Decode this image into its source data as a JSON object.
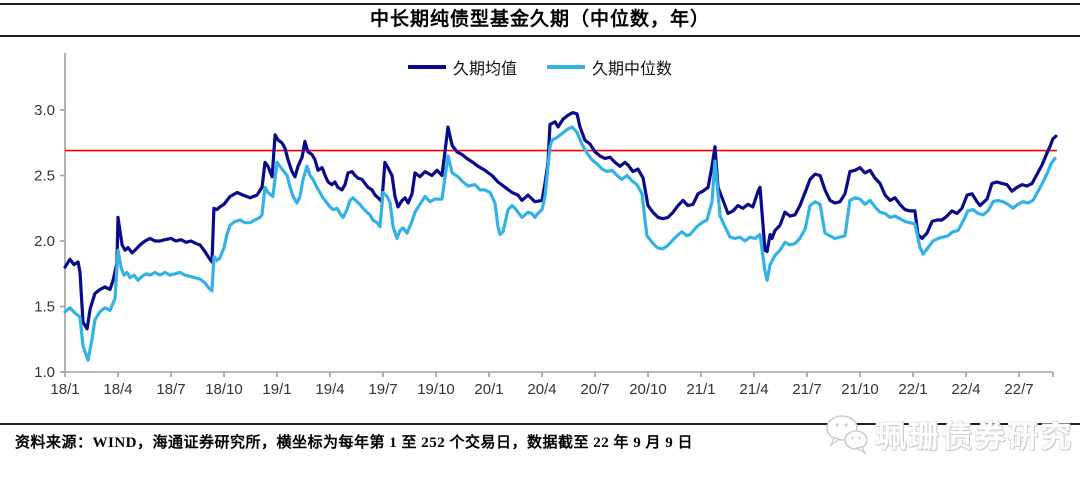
{
  "title": "中长期纯债型基金久期（中位数，年）",
  "legend": [
    {
      "label": "久期均值",
      "color": "#0A0A8C"
    },
    {
      "label": "久期中位数",
      "color": "#33B3E5"
    }
  ],
  "footer": {
    "source_note": "资料来源：WIND，海通证券研究所，横坐标为每年第 1 至 252 个交易日，数据截至 22 年 9 月 9 日"
  },
  "watermark": {
    "text": "珮珊债券研究",
    "icon": "wechat-icon"
  },
  "colors": {
    "axis": "#A0A0A0",
    "tick_label": "#333333",
    "reference": "#FF0000"
  },
  "chart_data": {
    "type": "line",
    "title": "中长期纯债型基金久期（中位数，年）",
    "grid": false,
    "legend_position": "top-center",
    "x_axis": {
      "unit": "months since 2018/1 (labels every 3 months; each year = trading day 1-252)",
      "tick_labels": [
        "18/1",
        "18/4",
        "18/7",
        "18/10",
        "19/1",
        "19/4",
        "19/7",
        "19/10",
        "20/1",
        "20/4",
        "20/7",
        "20/10",
        "21/1",
        "21/4",
        "21/7",
        "21/10",
        "22/1",
        "22/4",
        "22/7"
      ],
      "range_months": [
        0,
        56.3
      ]
    },
    "y_axis": {
      "tick_labels": [
        "1.0",
        "1.5",
        "2.0",
        "2.5",
        "3.0"
      ],
      "tick_values": [
        1.0,
        1.5,
        2.0,
        2.5,
        3.0
      ],
      "range": [
        1.0,
        3.44
      ]
    },
    "reference_line": {
      "value": 2.69,
      "color": "#FF0000"
    },
    "series": [
      {
        "name": "久期均值",
        "color": "#0A0A8C",
        "x": [
          0,
          0.28,
          0.51,
          0.74,
          0.85,
          1.02,
          1.25,
          1.42,
          1.58,
          1.7,
          1.98,
          2.26,
          2.55,
          2.72,
          2.94,
          3.0,
          3.11,
          3.23,
          3.4,
          3.57,
          3.79,
          3.96,
          4.25,
          4.53,
          4.81,
          5.09,
          5.38,
          5.66,
          6.0,
          6.28,
          6.57,
          6.85,
          7.13,
          7.42,
          7.64,
          7.92,
          8.15,
          8.32,
          8.43,
          8.6,
          8.77,
          9.0,
          9.17,
          9.34,
          9.74,
          10.08,
          10.47,
          10.87,
          11.15,
          11.32,
          11.49,
          11.72,
          11.89,
          12.06,
          12.28,
          12.45,
          12.62,
          12.85,
          13.02,
          13.19,
          13.42,
          13.58,
          13.75,
          13.98,
          14.15,
          14.32,
          14.55,
          14.72,
          14.89,
          15.11,
          15.28,
          15.45,
          15.68,
          15.85,
          16.02,
          16.25,
          16.42,
          16.58,
          16.81,
          16.98,
          17.15,
          17.38,
          17.55,
          17.72,
          17.94,
          18.11,
          18.28,
          18.51,
          18.68,
          18.85,
          19.08,
          19.25,
          19.42,
          19.64,
          19.81,
          20.09,
          20.38,
          20.77,
          21.06,
          21.34,
          21.68,
          21.91,
          22.19,
          22.47,
          22.75,
          23.09,
          23.38,
          23.77,
          24.17,
          24.51,
          24.91,
          25.3,
          25.64,
          25.87,
          26.21,
          26.6,
          27.0,
          27.17,
          27.34,
          27.45,
          27.74,
          27.91,
          28.19,
          28.47,
          28.75,
          28.98,
          29.15,
          29.43,
          29.72,
          30.0,
          30.28,
          30.57,
          30.85,
          31.13,
          31.42,
          31.7,
          31.87,
          32.15,
          32.43,
          32.72,
          33.0,
          33.28,
          33.57,
          33.85,
          34.13,
          34.42,
          34.7,
          34.98,
          35.26,
          35.55,
          35.83,
          36.11,
          36.4,
          36.62,
          36.79,
          36.96,
          37.25,
          37.53,
          37.81,
          38.09,
          38.38,
          38.66,
          38.94,
          39.23,
          39.34,
          39.62,
          39.74,
          39.91,
          40.02,
          40.19,
          40.47,
          40.75,
          41.04,
          41.32,
          41.6,
          41.89,
          42.17,
          42.45,
          42.74,
          43.02,
          43.3,
          43.58,
          43.87,
          44.15,
          44.43,
          44.72,
          45.0,
          45.28,
          45.57,
          45.85,
          46.13,
          46.42,
          46.7,
          46.98,
          47.26,
          47.55,
          47.83,
          48.11,
          48.28,
          48.51,
          48.79,
          49.08,
          49.36,
          49.64,
          49.92,
          50.21,
          50.49,
          50.77,
          51.06,
          51.34,
          51.62,
          51.79,
          52.19,
          52.47,
          52.75,
          53.04,
          53.32,
          53.6,
          53.89,
          54.17,
          54.45,
          54.74,
          55.02,
          55.3,
          55.58,
          55.75,
          55.92,
          56.09
        ],
        "y": [
          1.8,
          1.86,
          1.82,
          1.84,
          1.76,
          1.38,
          1.33,
          1.48,
          1.55,
          1.6,
          1.63,
          1.65,
          1.63,
          1.7,
          1.83,
          2.18,
          2.08,
          1.97,
          1.93,
          1.95,
          1.91,
          1.93,
          1.97,
          2.0,
          2.02,
          2.0,
          2.0,
          2.01,
          2.02,
          2.0,
          2.01,
          1.99,
          2.0,
          1.98,
          1.97,
          1.92,
          1.87,
          1.84,
          2.25,
          2.24,
          2.26,
          2.28,
          2.31,
          2.34,
          2.37,
          2.35,
          2.33,
          2.35,
          2.41,
          2.6,
          2.57,
          2.49,
          2.81,
          2.77,
          2.75,
          2.71,
          2.62,
          2.53,
          2.49,
          2.57,
          2.64,
          2.76,
          2.68,
          2.66,
          2.62,
          2.54,
          2.56,
          2.5,
          2.45,
          2.43,
          2.45,
          2.41,
          2.39,
          2.43,
          2.52,
          2.53,
          2.5,
          2.48,
          2.47,
          2.44,
          2.41,
          2.39,
          2.35,
          2.33,
          2.3,
          2.6,
          2.56,
          2.5,
          2.34,
          2.26,
          2.31,
          2.33,
          2.29,
          2.36,
          2.52,
          2.49,
          2.53,
          2.5,
          2.54,
          2.5,
          2.87,
          2.73,
          2.68,
          2.66,
          2.63,
          2.6,
          2.57,
          2.54,
          2.5,
          2.45,
          2.41,
          2.37,
          2.35,
          2.31,
          2.35,
          2.3,
          2.31,
          2.44,
          2.6,
          2.89,
          2.91,
          2.87,
          2.93,
          2.96,
          2.98,
          2.97,
          2.87,
          2.77,
          2.74,
          2.68,
          2.65,
          2.63,
          2.64,
          2.6,
          2.57,
          2.6,
          2.58,
          2.53,
          2.55,
          2.48,
          2.27,
          2.22,
          2.18,
          2.17,
          2.18,
          2.22,
          2.27,
          2.31,
          2.27,
          2.28,
          2.36,
          2.38,
          2.41,
          2.57,
          2.72,
          2.41,
          2.31,
          2.21,
          2.23,
          2.27,
          2.25,
          2.28,
          2.26,
          2.38,
          2.41,
          1.93,
          1.92,
          2.05,
          2.02,
          2.08,
          2.12,
          2.22,
          2.19,
          2.2,
          2.27,
          2.37,
          2.47,
          2.51,
          2.5,
          2.39,
          2.31,
          2.29,
          2.3,
          2.36,
          2.53,
          2.54,
          2.56,
          2.52,
          2.54,
          2.48,
          2.44,
          2.35,
          2.31,
          2.33,
          2.28,
          2.24,
          2.23,
          2.23,
          2.05,
          2.02,
          2.06,
          2.15,
          2.16,
          2.16,
          2.19,
          2.23,
          2.21,
          2.25,
          2.35,
          2.36,
          2.3,
          2.27,
          2.32,
          2.44,
          2.45,
          2.44,
          2.43,
          2.38,
          2.41,
          2.43,
          2.42,
          2.44,
          2.51,
          2.58,
          2.67,
          2.72,
          2.78,
          2.8
        ]
      },
      {
        "name": "久期中位数",
        "color": "#33B3E5",
        "x": [
          0,
          0.28,
          0.57,
          0.85,
          1.02,
          1.25,
          1.3,
          1.53,
          1.7,
          1.98,
          2.26,
          2.55,
          2.83,
          3.0,
          3.17,
          3.34,
          3.51,
          3.68,
          3.91,
          4.13,
          4.36,
          4.59,
          4.81,
          5.09,
          5.38,
          5.66,
          5.94,
          6.23,
          6.51,
          6.79,
          7.08,
          7.36,
          7.64,
          7.92,
          8.15,
          8.32,
          8.43,
          8.6,
          8.77,
          9.0,
          9.17,
          9.34,
          9.62,
          9.91,
          10.19,
          10.47,
          10.75,
          11.04,
          11.15,
          11.32,
          11.49,
          11.77,
          12.0,
          12.17,
          12.34,
          12.57,
          12.74,
          12.91,
          13.13,
          13.3,
          13.47,
          13.7,
          13.87,
          14.04,
          14.26,
          14.43,
          14.6,
          14.83,
          15.0,
          15.17,
          15.4,
          15.57,
          15.74,
          15.96,
          16.13,
          16.3,
          16.53,
          16.7,
          16.87,
          17.09,
          17.26,
          17.43,
          17.66,
          17.83,
          18.0,
          18.23,
          18.4,
          18.57,
          18.79,
          18.96,
          19.13,
          19.36,
          19.64,
          19.81,
          20.09,
          20.38,
          20.66,
          20.94,
          21.34,
          21.68,
          21.91,
          22.25,
          22.53,
          22.81,
          23.21,
          23.49,
          23.77,
          24.06,
          24.34,
          24.51,
          24.62,
          24.79,
          25.08,
          25.3,
          25.47,
          25.64,
          25.87,
          26.04,
          26.21,
          26.43,
          26.6,
          26.77,
          27.0,
          27.17,
          27.34,
          27.45,
          27.57,
          27.85,
          28.13,
          28.41,
          28.7,
          28.98,
          29.26,
          29.55,
          29.83,
          30.11,
          30.4,
          30.68,
          30.96,
          31.25,
          31.53,
          31.81,
          32.09,
          32.38,
          32.66,
          32.94,
          33.23,
          33.51,
          33.79,
          34.08,
          34.36,
          34.64,
          34.92,
          35.21,
          35.38,
          35.77,
          36.06,
          36.34,
          36.62,
          36.79,
          37.08,
          37.36,
          37.64,
          37.92,
          38.21,
          38.49,
          38.77,
          39.06,
          39.34,
          39.62,
          39.74,
          39.91,
          40.19,
          40.47,
          40.75,
          41.04,
          41.32,
          41.6,
          41.89,
          42.17,
          42.45,
          42.74,
          43.02,
          43.3,
          43.58,
          43.87,
          44.15,
          44.43,
          44.72,
          45.0,
          45.28,
          45.57,
          45.85,
          46.13,
          46.42,
          46.7,
          46.98,
          47.26,
          47.55,
          47.83,
          48.11,
          48.4,
          48.57,
          48.85,
          49.13,
          49.42,
          49.7,
          49.98,
          50.26,
          50.55,
          50.83,
          51.11,
          51.4,
          51.68,
          51.96,
          52.25,
          52.53,
          52.81,
          53.09,
          53.38,
          53.66,
          53.94,
          54.23,
          54.51,
          54.79,
          55.08,
          55.36,
          55.64,
          55.81,
          56.04
        ],
        "y": [
          1.46,
          1.49,
          1.45,
          1.42,
          1.2,
          1.11,
          1.09,
          1.25,
          1.4,
          1.46,
          1.49,
          1.47,
          1.56,
          1.93,
          1.8,
          1.74,
          1.76,
          1.72,
          1.74,
          1.7,
          1.73,
          1.75,
          1.74,
          1.76,
          1.74,
          1.76,
          1.74,
          1.75,
          1.76,
          1.74,
          1.73,
          1.72,
          1.71,
          1.68,
          1.64,
          1.62,
          1.88,
          1.85,
          1.87,
          1.95,
          2.05,
          2.12,
          2.15,
          2.16,
          2.14,
          2.14,
          2.16,
          2.18,
          2.2,
          2.41,
          2.37,
          2.34,
          2.6,
          2.57,
          2.54,
          2.5,
          2.41,
          2.34,
          2.29,
          2.34,
          2.47,
          2.57,
          2.5,
          2.47,
          2.41,
          2.37,
          2.33,
          2.29,
          2.26,
          2.24,
          2.25,
          2.21,
          2.18,
          2.24,
          2.31,
          2.33,
          2.3,
          2.28,
          2.25,
          2.22,
          2.2,
          2.16,
          2.14,
          2.11,
          2.37,
          2.34,
          2.29,
          2.11,
          2.02,
          2.08,
          2.1,
          2.06,
          2.15,
          2.22,
          2.28,
          2.34,
          2.3,
          2.32,
          2.32,
          2.65,
          2.52,
          2.49,
          2.45,
          2.42,
          2.43,
          2.39,
          2.39,
          2.37,
          2.29,
          2.11,
          2.05,
          2.07,
          2.24,
          2.27,
          2.25,
          2.22,
          2.18,
          2.2,
          2.22,
          2.21,
          2.18,
          2.21,
          2.24,
          2.34,
          2.57,
          2.72,
          2.77,
          2.79,
          2.82,
          2.85,
          2.87,
          2.83,
          2.74,
          2.67,
          2.62,
          2.59,
          2.55,
          2.53,
          2.54,
          2.5,
          2.47,
          2.5,
          2.46,
          2.43,
          2.36,
          2.04,
          1.99,
          1.95,
          1.94,
          1.96,
          2.0,
          2.04,
          2.07,
          2.04,
          2.05,
          2.11,
          2.14,
          2.16,
          2.3,
          2.61,
          2.19,
          2.11,
          2.03,
          2.02,
          2.03,
          2.0,
          2.03,
          2.02,
          2.05,
          1.77,
          1.7,
          1.82,
          1.89,
          1.93,
          1.99,
          1.97,
          1.98,
          2.02,
          2.09,
          2.27,
          2.3,
          2.28,
          2.06,
          2.04,
          2.02,
          2.03,
          2.04,
          2.31,
          2.33,
          2.32,
          2.28,
          2.31,
          2.26,
          2.22,
          2.21,
          2.18,
          2.19,
          2.17,
          2.15,
          2.14,
          2.13,
          1.95,
          1.9,
          1.95,
          2.0,
          2.02,
          2.03,
          2.04,
          2.07,
          2.08,
          2.15,
          2.23,
          2.24,
          2.21,
          2.2,
          2.23,
          2.3,
          2.31,
          2.3,
          2.28,
          2.25,
          2.28,
          2.3,
          2.29,
          2.31,
          2.38,
          2.45,
          2.53,
          2.59,
          2.63
        ]
      }
    ]
  }
}
